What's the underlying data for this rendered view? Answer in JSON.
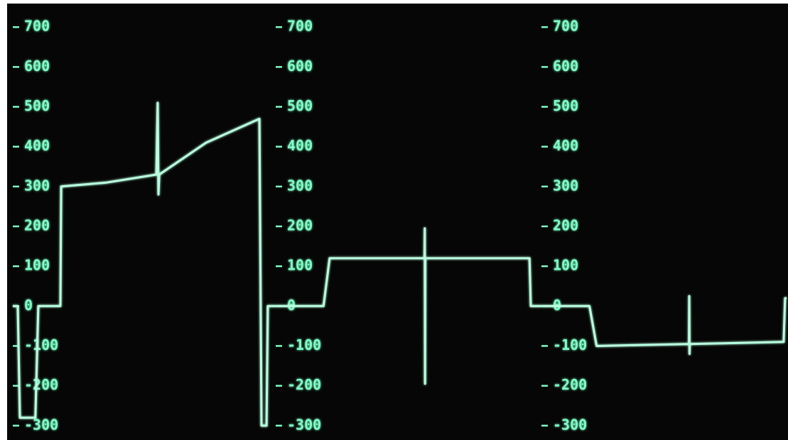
{
  "chart_data": [
    {
      "type": "line",
      "color": "#b9ffe0",
      "axis_color": "#7dffc6",
      "x": [
        0,
        1.9,
        2.7,
        8.6,
        9.7,
        18.1,
        18.4,
        35.7,
        54.6,
        55.1,
        55.4,
        55.7,
        73.5,
        93.8,
        94.6,
        96.5,
        97,
        100
      ],
      "values": [
        0,
        0,
        -280,
        -280,
        0,
        0,
        300,
        310,
        330,
        510,
        280,
        330,
        410,
        470,
        -300,
        -300,
        0,
        0
      ],
      "xlim": [
        0,
        100
      ],
      "ylim": [
        -336,
        768
      ],
      "yticks": [
        -300,
        -200,
        -100,
        0,
        100,
        200,
        300,
        400,
        500,
        600,
        700
      ]
    },
    {
      "type": "line",
      "color": "#b9ffe0",
      "axis_color": "#7dffc6",
      "x": [
        0,
        18,
        20.3,
        56,
        56.1,
        56.2,
        56.3,
        95.5,
        96,
        100
      ],
      "values": [
        0,
        0,
        120,
        120,
        195,
        -195,
        120,
        120,
        0,
        0
      ],
      "xlim": [
        0,
        100
      ],
      "ylim": [
        -336,
        768
      ],
      "yticks": [
        -300,
        -200,
        -100,
        0,
        100,
        200,
        300,
        400,
        500,
        600,
        700
      ]
    },
    {
      "type": "line",
      "color": "#b9ffe0",
      "axis_color": "#7dffc6",
      "x": [
        0,
        19.6,
        22.5,
        60.2,
        60.3,
        60.4,
        60.5,
        98.8,
        99.4,
        100
      ],
      "values": [
        0,
        0,
        -100,
        -95,
        25,
        -120,
        -95,
        -90,
        20,
        20
      ],
      "xlim": [
        0,
        100
      ],
      "ylim": [
        -336,
        768
      ],
      "yticks": [
        -300,
        -200,
        -100,
        0,
        100,
        200,
        300,
        400,
        500,
        600,
        700
      ]
    }
  ]
}
